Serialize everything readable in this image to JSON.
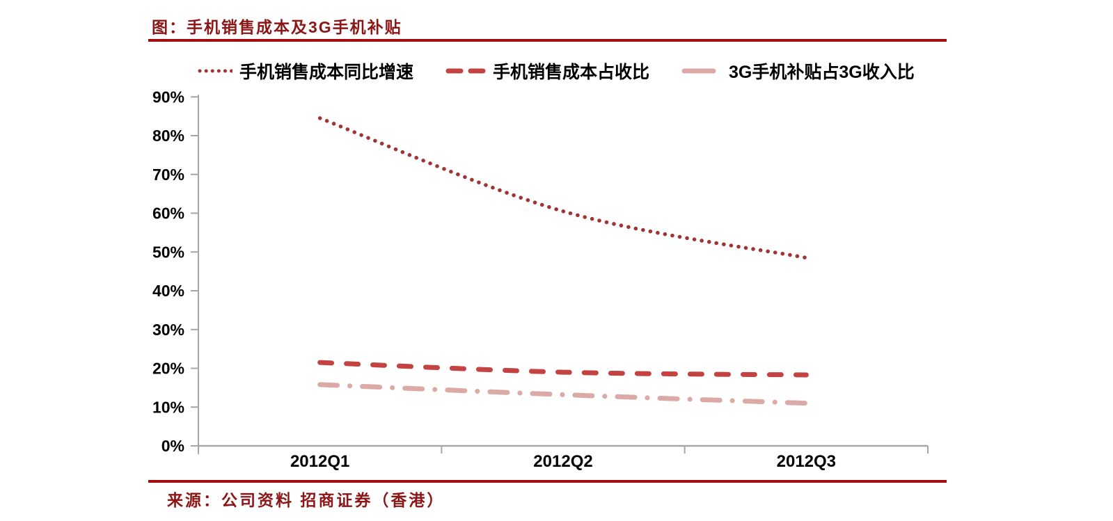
{
  "title": "图：手机销售成本及3G手机补贴",
  "source": "来源：公司资料 招商证券（香港）",
  "colors": {
    "title_red": "#8C1515",
    "rule_red": "#A30D0D",
    "axis_gray": "#A6A6A6",
    "label_black": "#000000"
  },
  "legend": [
    {
      "label": "手机销售成本同比增速",
      "style": "dotted",
      "color": "#9E3434"
    },
    {
      "label": "手机销售成本占收比",
      "style": "dashed",
      "color": "#C24341"
    },
    {
      "label": "3G手机补贴占3G收入比",
      "style": "dashdot",
      "color": "#DBAAA7"
    }
  ],
  "chart_data": {
    "type": "line",
    "title": "图：手机销售成本及3G手机补贴",
    "categories": [
      "2012Q1",
      "2012Q2",
      "2012Q3"
    ],
    "series": [
      {
        "name": "手机销售成本同比增速",
        "values": [
          84.5,
          60.5,
          48.5
        ],
        "color": "#9E3434",
        "style": "dotted",
        "smooth": true
      },
      {
        "name": "手机销售成本占收比",
        "values": [
          21.5,
          19.0,
          18.3
        ],
        "color": "#C24341",
        "style": "dashed",
        "smooth": true
      },
      {
        "name": "3G手机补贴占3G收入比",
        "values": [
          15.8,
          13.2,
          11.0
        ],
        "color": "#DBAAA7",
        "style": "dashdot",
        "smooth": true
      }
    ],
    "ylim": [
      0,
      90
    ],
    "ytick_step": 10,
    "yticks": [
      "0%",
      "10%",
      "20%",
      "30%",
      "40%",
      "50%",
      "60%",
      "70%",
      "80%",
      "90%"
    ],
    "xlabel": "",
    "ylabel": "",
    "grid": false,
    "legend_position": "top"
  }
}
